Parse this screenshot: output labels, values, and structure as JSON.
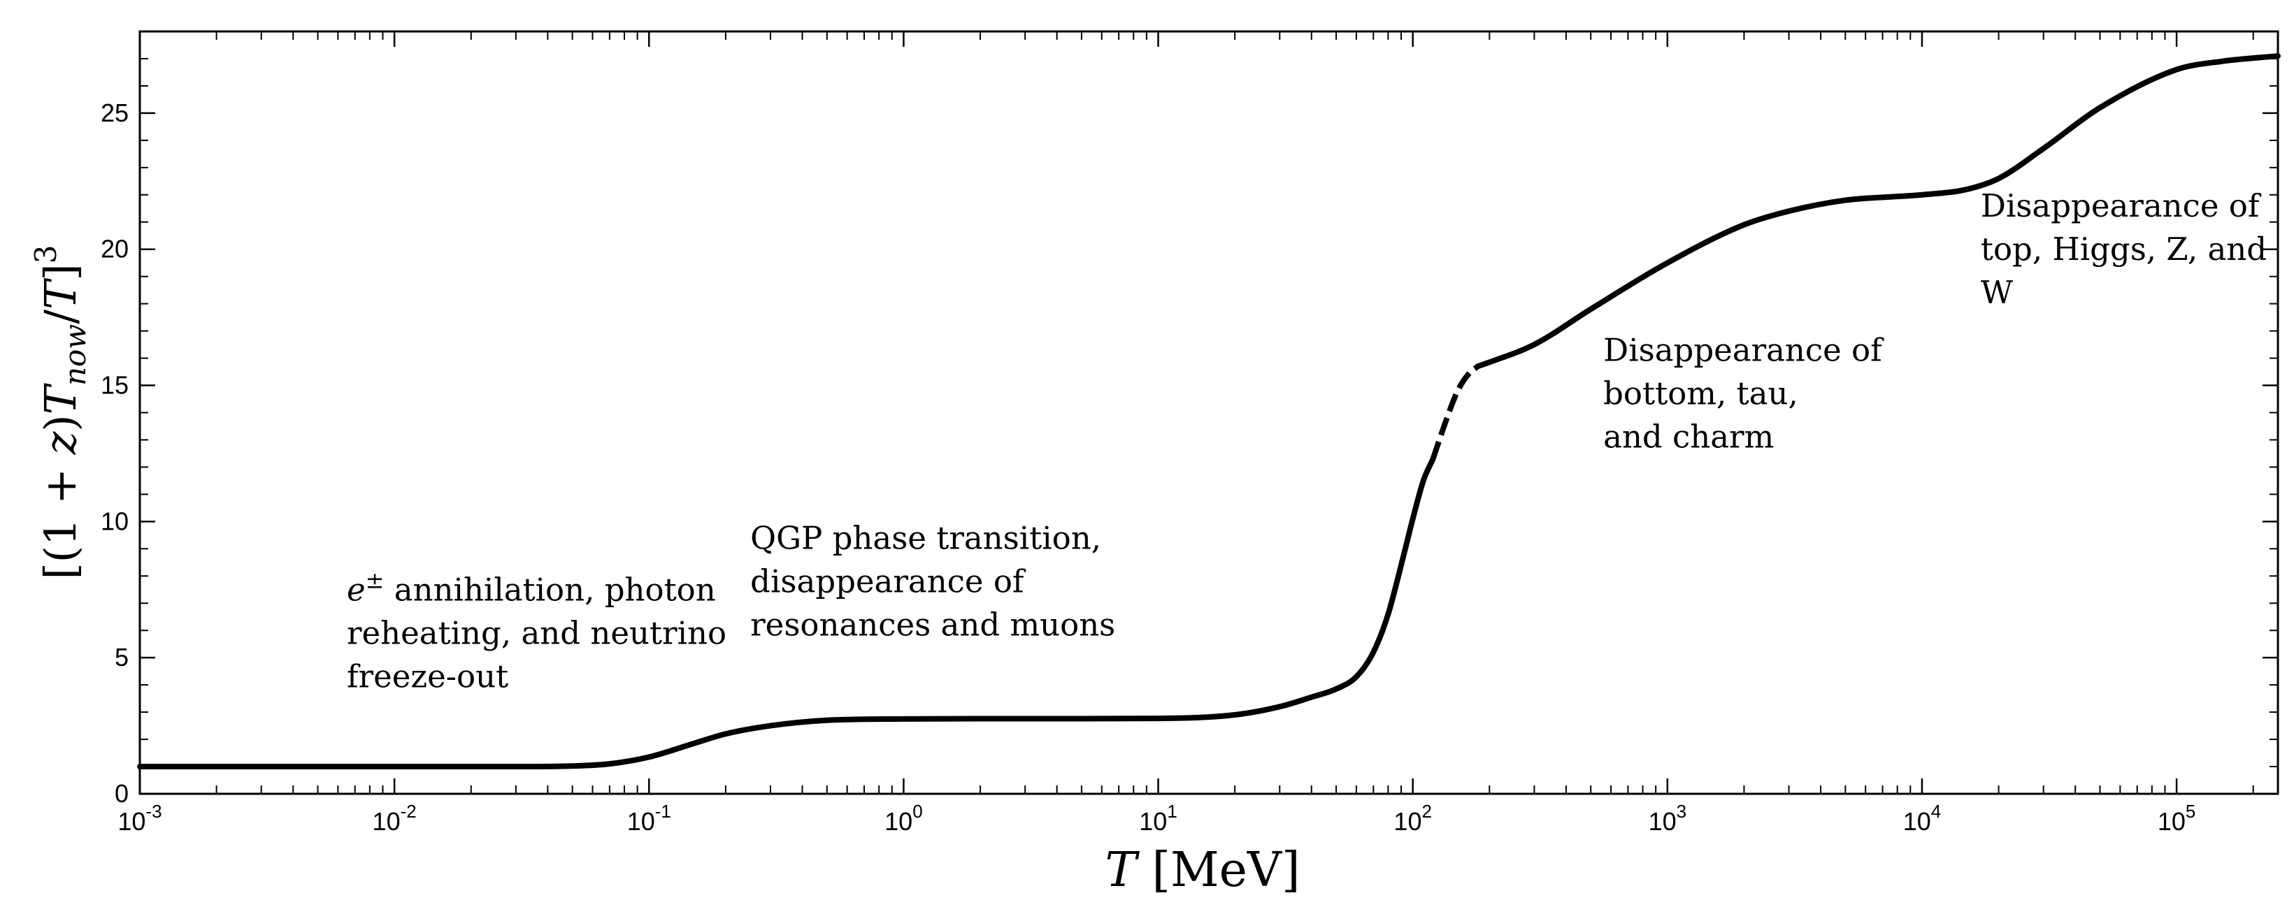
{
  "chart_data": {
    "type": "line",
    "title": "",
    "xlabel": "T [MeV]",
    "ylabel": "[(1 + z)T_now / T]^3",
    "xscale": "log",
    "xlim": [
      0.001,
      250000
    ],
    "ylim": [
      0,
      28
    ],
    "grid": false,
    "x_tick_labels": [
      {
        "base": "10",
        "exp": "-3"
      },
      {
        "base": "10",
        "exp": "-2"
      },
      {
        "base": "10",
        "exp": "-1"
      },
      {
        "base": "10",
        "exp": "0"
      },
      {
        "base": "10",
        "exp": "1"
      },
      {
        "base": "10",
        "exp": "2"
      },
      {
        "base": "10",
        "exp": "3"
      },
      {
        "base": "10",
        "exp": "4"
      },
      {
        "base": "10",
        "exp": "5"
      }
    ],
    "y_tick_labels": [
      "0",
      "5",
      "10",
      "15",
      "20",
      "25"
    ],
    "y_ticks": [
      0,
      5,
      10,
      15,
      20,
      25
    ],
    "series": [
      {
        "name": "solid-low",
        "style": "solid",
        "x": [
          0.001,
          0.01,
          0.03,
          0.05,
          0.07,
          0.1,
          0.15,
          0.2,
          0.3,
          0.5,
          1,
          2,
          5,
          10,
          20,
          30,
          40,
          50,
          60,
          70,
          80,
          90,
          100,
          110,
          120
        ],
        "y": [
          1.0,
          1.0,
          1.0,
          1.02,
          1.1,
          1.35,
          1.85,
          2.2,
          2.5,
          2.7,
          2.75,
          2.76,
          2.76,
          2.77,
          2.9,
          3.2,
          3.55,
          3.85,
          4.3,
          5.2,
          6.6,
          8.4,
          10.1,
          11.5,
          12.3
        ]
      },
      {
        "name": "dashed-transition",
        "style": "dashed",
        "x": [
          120,
          135,
          150,
          165,
          180
        ],
        "y": [
          12.3,
          13.7,
          14.8,
          15.4,
          15.7
        ]
      },
      {
        "name": "solid-high",
        "style": "solid",
        "x": [
          180,
          200,
          300,
          500,
          1000,
          2000,
          3000,
          5000,
          10000,
          15000,
          20000,
          30000,
          50000,
          100000,
          150000,
          250000
        ],
        "y": [
          15.7,
          15.85,
          16.5,
          17.8,
          19.5,
          20.9,
          21.4,
          21.8,
          22.0,
          22.2,
          22.6,
          23.7,
          25.2,
          26.6,
          26.9,
          27.1
        ]
      }
    ],
    "annotations": [
      {
        "name": "annotation-epm",
        "x": 0.0065,
        "y": 7.1,
        "lines": [
          "e± annihilation, photon",
          "reheating, and neutrino",
          "freeze-out"
        ]
      },
      {
        "name": "annotation-qgp",
        "x": 0.25,
        "y": 9.0,
        "lines": [
          "QGP phase transition,",
          " disappearance of",
          " resonances and muons"
        ]
      },
      {
        "name": "annotation-bottom",
        "x": 560,
        "y": 15.9,
        "lines": [
          "Disappearance of",
          "bottom, tau,",
          "and charm"
        ]
      },
      {
        "name": "annotation-top",
        "x": 17000,
        "y": 21.2,
        "lines": [
          "Disappearance of",
          "top, Higgs, Z, and",
          "W"
        ]
      }
    ]
  }
}
